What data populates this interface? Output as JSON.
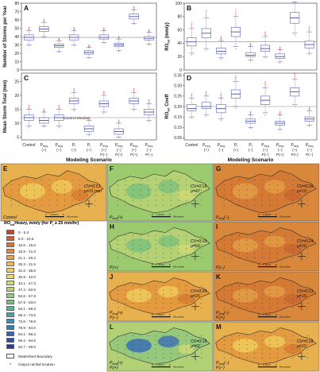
{
  "boxplots": {
    "panels": [
      {
        "letter": "A",
        "ylabel": "Number of Storms per Year",
        "ticks": [
          "0",
          "10",
          "20",
          "30",
          "40",
          "50",
          "60",
          "70",
          "80"
        ],
        "ylim": [
          0,
          80
        ]
      },
      {
        "letter": "B",
        "ylabel": "RO",
        "ylabel_sub": "tot",
        "ylabel_tail": " (mm/y)",
        "ticks": [
          "0",
          "20",
          "40",
          "60",
          "80",
          "100"
        ],
        "ylim": [
          0,
          100
        ]
      },
      {
        "letter": "C",
        "ylabel": "Mean Storm Total (mm)",
        "ticks": [
          "5",
          "10",
          "15",
          "20",
          "25"
        ],
        "ylim": [
          4,
          28
        ],
        "annotation": "Control Median"
      },
      {
        "letter": "D",
        "ylabel": "RO",
        "ylabel_sub": "tot",
        "ylabel_tail": " Coeff",
        "ticks": [
          "0.05",
          "0.10",
          "0.15",
          "0.20",
          "0.25",
          "0.30",
          "0.35"
        ],
        "ylim": [
          0.04,
          0.36
        ]
      }
    ],
    "categories": [
      {
        "main": "Control",
        "l1": "",
        "l2": ""
      },
      {
        "main": "P",
        "sub": "freq",
        "l1": "(+)",
        "l2": ""
      },
      {
        "main": "P",
        "sub": "freq",
        "l1": "(−)",
        "l2": ""
      },
      {
        "main": "P",
        "sub": "i",
        "l1": "(+)",
        "l2": ""
      },
      {
        "main": "P",
        "sub": "i",
        "l1": "(−)",
        "l2": ""
      },
      {
        "main": "P",
        "sub": "freq",
        "l1": "(+)",
        "l2": "P(−)"
      },
      {
        "main": "P",
        "sub": "freq",
        "l1": "(−)",
        "l2": "P(+)"
      },
      {
        "main": "P",
        "sub": "freq",
        "l1": "(+)",
        "l2": "P(+)"
      },
      {
        "main": "P",
        "sub": "freq",
        "l1": "(−)",
        "l2": "P(−)"
      }
    ],
    "xlabel": "Modeling Scenario"
  },
  "chart_data": [
    {
      "type": "box",
      "panel": "A",
      "categories": [
        "Control",
        "Pfreq(+)",
        "Pfreq(-)",
        "Pi(+)",
        "Pi(-)",
        "Pfreq(+)Pi(-)",
        "Pfreq(-)Pi(+)",
        "Pfreq(+)Pi(+)",
        "Pfreq(-)Pi(-)"
      ],
      "medians": [
        39,
        49,
        29,
        39,
        21,
        39,
        30,
        64,
        38
      ],
      "q1": [
        36,
        46,
        27,
        36,
        19,
        37,
        28,
        61,
        36
      ],
      "q3": [
        42,
        52,
        31,
        42,
        23,
        42,
        32,
        67,
        40
      ],
      "whisker_low": [
        30,
        40,
        22,
        30,
        15,
        33,
        23,
        56,
        31
      ],
      "whisker_high": [
        47,
        57,
        35,
        47,
        27,
        47,
        37,
        72,
        45
      ],
      "reference": 39
    },
    {
      "type": "box",
      "panel": "B",
      "categories": [
        "Control",
        "Pfreq(+)",
        "Pfreq(-)",
        "Pi(+)",
        "Pi(-)",
        "Pfreq(+)Pi(-)",
        "Pfreq(-)Pi(+)",
        "Pfreq(+)Pi(+)",
        "Pfreq(-)Pi(-)"
      ],
      "medians": [
        42,
        55,
        28,
        57,
        22,
        32,
        20,
        78,
        38
      ],
      "q1": [
        36,
        48,
        24,
        50,
        20,
        28,
        17,
        70,
        33
      ],
      "q3": [
        48,
        62,
        33,
        64,
        26,
        37,
        24,
        86,
        43
      ],
      "whisker_low": [
        25,
        32,
        18,
        35,
        15,
        20,
        12,
        55,
        25
      ],
      "whisker_high": [
        62,
        78,
        44,
        80,
        35,
        50,
        30,
        102,
        57
      ],
      "reference": 42
    },
    {
      "type": "box",
      "panel": "C",
      "categories": [
        "Control",
        "Pfreq(+)",
        "Pfreq(-)",
        "Pi(+)",
        "Pi(-)",
        "Pfreq(+)Pi(-)",
        "Pfreq(-)Pi(+)",
        "Pfreq(+)Pi(+)",
        "Pfreq(-)Pi(-)"
      ],
      "medians": [
        12,
        11,
        12,
        18,
        8,
        17,
        7,
        18,
        14
      ],
      "q1": [
        11,
        10,
        11,
        17,
        7,
        16,
        6,
        17,
        13
      ],
      "q3": [
        13,
        12,
        13,
        19,
        9,
        18,
        8,
        19,
        15
      ],
      "whisker_low": [
        9,
        9,
        9,
        15,
        6,
        14,
        5,
        15,
        11
      ],
      "whisker_high": [
        15,
        14,
        15,
        21,
        11,
        20,
        10,
        21,
        17
      ],
      "reference": 12
    },
    {
      "type": "box",
      "panel": "D",
      "categories": [
        "Control",
        "Pfreq(+)",
        "Pfreq(-)",
        "Pi(+)",
        "Pi(-)",
        "Pfreq(+)Pi(-)",
        "Pfreq(-)Pi(+)",
        "Pfreq(+)Pi(+)",
        "Pfreq(-)Pi(-)"
      ],
      "medians": [
        0.19,
        0.2,
        0.19,
        0.26,
        0.13,
        0.23,
        0.12,
        0.27,
        0.14
      ],
      "q1": [
        0.18,
        0.19,
        0.17,
        0.24,
        0.12,
        0.21,
        0.11,
        0.25,
        0.13
      ],
      "q3": [
        0.21,
        0.22,
        0.21,
        0.28,
        0.14,
        0.25,
        0.13,
        0.29,
        0.15
      ],
      "whisker_low": [
        0.15,
        0.16,
        0.14,
        0.2,
        0.1,
        0.17,
        0.09,
        0.21,
        0.11
      ],
      "whisker_high": [
        0.24,
        0.25,
        0.24,
        0.32,
        0.16,
        0.29,
        0.16,
        0.33,
        0.18
      ],
      "reference": 0.2
    }
  ],
  "maps": [
    {
      "letter": "E",
      "cv": "CV=0.23",
      "mu": "μ=31 mm",
      "caption": "Control",
      "theme": "orange"
    },
    {
      "letter": "F",
      "cv": "CV=0.16",
      "mu": "μ=47",
      "caption": "P",
      "cap_sub": "freq",
      "cap_tail": "(+)",
      "theme": "green"
    },
    {
      "letter": "G",
      "cv": "CV=0.26",
      "mu": "μ=19",
      "caption": "P",
      "cap_sub": "freq",
      "cap_tail": "(−)",
      "theme": "darkorange"
    },
    {
      "letter": "H",
      "cv": "CV=0.18",
      "mu": "μ=50",
      "caption": "P",
      "cap_sub": "i",
      "cap_tail": "(+)",
      "theme": "green"
    },
    {
      "letter": "I",
      "cv": "CV=0.24",
      "mu": "μ=20",
      "caption": "P",
      "cap_sub": "i",
      "cap_tail": "(−)",
      "theme": "darkorange"
    },
    {
      "letter": "J",
      "cv": "CV=0.26",
      "mu": "μ=26",
      "caption": "P",
      "cap_sub": "freq",
      "cap_tail": "(+)",
      "cap2": "P",
      "cap2_sub": "i",
      "cap2_tail": "(−)",
      "theme": "orange"
    },
    {
      "letter": "K",
      "cv": "CV=0.23",
      "mu": "μ=15",
      "caption": "P",
      "cap_sub": "freq",
      "cap_tail": "(−)",
      "cap2": "P",
      "cap2_sub": "i",
      "cap2_tail": "(+)",
      "theme": "darkorange"
    },
    {
      "letter": "L",
      "cv": "CV=0.18",
      "mu": "μ=62",
      "caption": "P",
      "cap_sub": "freq",
      "cap_tail": "(+)",
      "cap2": "P",
      "cap2_sub": "i",
      "cap2_tail": "(+)",
      "theme": "blue"
    },
    {
      "letter": "M",
      "cv": "CV=0.18",
      "mu": "μ=22",
      "caption": "P",
      "cap_sub": "freq",
      "cap_tail": "(−)",
      "cap2": "P",
      "cap2_sub": "i",
      "cap2_tail": "(−)",
      "theme": "orange"
    }
  ],
  "map_scale": {
    "zero": "0",
    "a": "1.25",
    "b": "2.5",
    "c": "5",
    "unit": "Kilometers"
  },
  "legend": {
    "title": "RO",
    "title_sub": "tot",
    "title_mid": "Heavy, mm/y (for P",
    "title_sub2": "i",
    "title_tail": " ≥ 25 mm/hr)",
    "classes": [
      {
        "label": "0 - 5.3",
        "color": "#c8442c"
      },
      {
        "label": "5.0 - 10.5",
        "color": "#d15d33"
      },
      {
        "label": "10.6 - 15.8",
        "color": "#d9723a"
      },
      {
        "label": "15.9 - 21.0",
        "color": "#e08a42"
      },
      {
        "label": "21.1 - 26.2",
        "color": "#e7a24c"
      },
      {
        "label": "26.3 - 31.5",
        "color": "#edb856"
      },
      {
        "label": "31.6 - 36.8",
        "color": "#f1cd63"
      },
      {
        "label": "36.9 - 42.0",
        "color": "#efdc70"
      },
      {
        "label": "42.1 - 47.3",
        "color": "#d3dc75"
      },
      {
        "label": "47.4 - 52.5",
        "color": "#b5d478"
      },
      {
        "label": "52.6 - 57.8",
        "color": "#96c97c"
      },
      {
        "label": "57.9 - 63.0",
        "color": "#79bc84"
      },
      {
        "label": "63.1 - 68.3",
        "color": "#62ae91"
      },
      {
        "label": "68.4 - 73.5",
        "color": "#4f9ea1"
      },
      {
        "label": "73.6 - 78.8",
        "color": "#418cb0"
      },
      {
        "label": "78.9 - 84.0",
        "color": "#3a79b9"
      },
      {
        "label": "84.1 - 89.3",
        "color": "#3464b4"
      },
      {
        "label": "89.4 - 94.6",
        "color": "#2e4fa8"
      },
      {
        "label": "94.7 - 99.0",
        "color": "#283c97"
      }
    ],
    "boundary": "Watershed Boundary",
    "points": "Output rainfall location"
  },
  "colors": {
    "box": "#5a5fc0",
    "outlier": "#e03030",
    "refline": "#888888",
    "median": "#4b4fb0"
  }
}
